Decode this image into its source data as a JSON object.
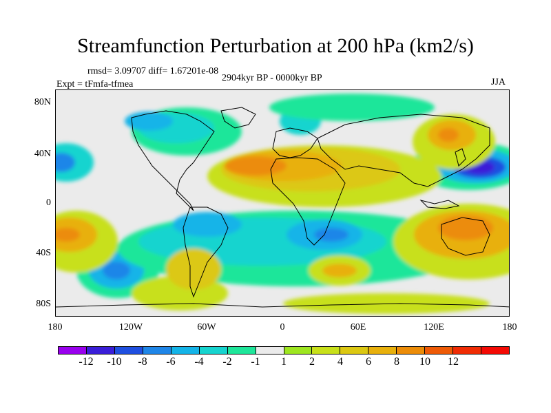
{
  "title": "Streamfunction Perturbation at 200 hPa (km2/s)",
  "stats": "rmsd= 3.09707 diff= 1.67201e-08",
  "period": "2904kyr BP - 0000kyr BP",
  "expt": "Expt = tFmfa-tfmea",
  "season": "JJA",
  "y_ticks": [
    "80N",
    "40N",
    "0",
    "40S",
    "80S"
  ],
  "x_ticks": [
    "180",
    "120W",
    "60W",
    "0",
    "60E",
    "120E",
    "180"
  ],
  "colorbar": {
    "colors": [
      "#9900ee",
      "#3a1ed8",
      "#1f4fe0",
      "#1f86e8",
      "#14b4e8",
      "#16d4cf",
      "#1ee69a",
      "#ebebeb",
      "#9ee620",
      "#c8e01a",
      "#dcc812",
      "#e8b00c",
      "#ec8c08",
      "#ee5a06",
      "#f02c04",
      "#f40a04"
    ],
    "labels": [
      "-12",
      "-10",
      "-8",
      "-6",
      "-4",
      "-2",
      "-1",
      "1",
      "2",
      "4",
      "6",
      "8",
      "10",
      "12"
    ]
  }
}
